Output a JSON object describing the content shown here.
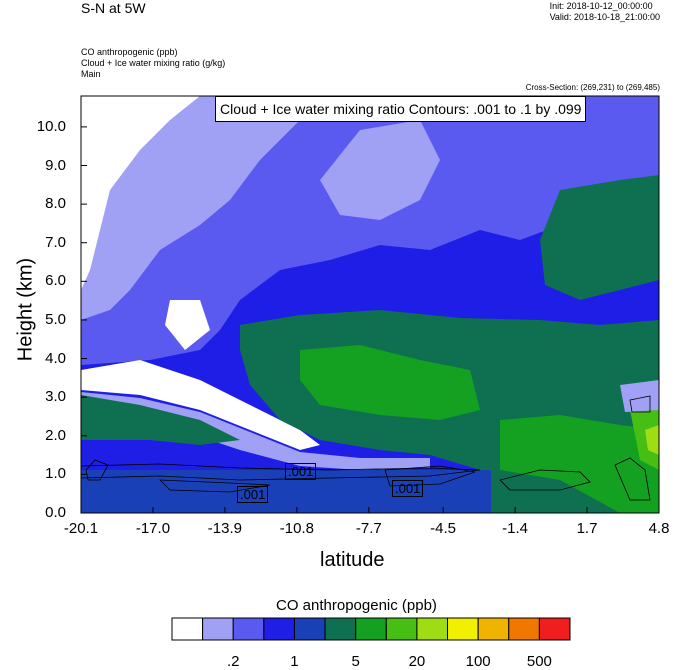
{
  "header": {
    "title": "S-N at 5W",
    "init": "Init: 2018-10-12_00:00:00",
    "valid": "Valid: 2018-10-18_21:00:00",
    "field1": "CO anthropogenic   (ppb)",
    "field2": "Cloud + Ice water mixing ratio   (g/kg)",
    "field3": "Main",
    "cross_section": "Cross-Section: (269,231) to (269,485)"
  },
  "chart_data": {
    "type": "heatmap",
    "contour_title": "Cloud + Ice water mixing ratio Contours: .001 to .1 by .099",
    "xlabel": "latitude",
    "ylabel": "Height (km)",
    "x_ticks": [
      "-20.1",
      "-17.0",
      "-13.9",
      "-10.8",
      "-7.7",
      "-4.5",
      "-1.4",
      "1.7",
      "4.8"
    ],
    "y_ticks": [
      "0.0",
      "1.0",
      "2.0",
      "3.0",
      "4.0",
      "5.0",
      "6.0",
      "7.0",
      "8.0",
      "9.0",
      "10.0"
    ],
    "xlim": [
      -20.1,
      4.8
    ],
    "ylim": [
      0,
      10.8
    ],
    "contour_labels": [
      ".001",
      ".001",
      ".001"
    ],
    "colorbar": {
      "title": "CO anthropogenic  (ppb)",
      "colors": [
        "#ffffff",
        "#a0a0f5",
        "#5a5af0",
        "#1e1ee6",
        "#1a40b8",
        "#0e7050",
        "#14a020",
        "#46be14",
        "#a0dc14",
        "#f0f000",
        "#f0b400",
        "#f07800",
        "#f01e1e"
      ],
      "labels": [
        ".2",
        "1",
        "5",
        "20",
        "100",
        "500"
      ]
    }
  }
}
